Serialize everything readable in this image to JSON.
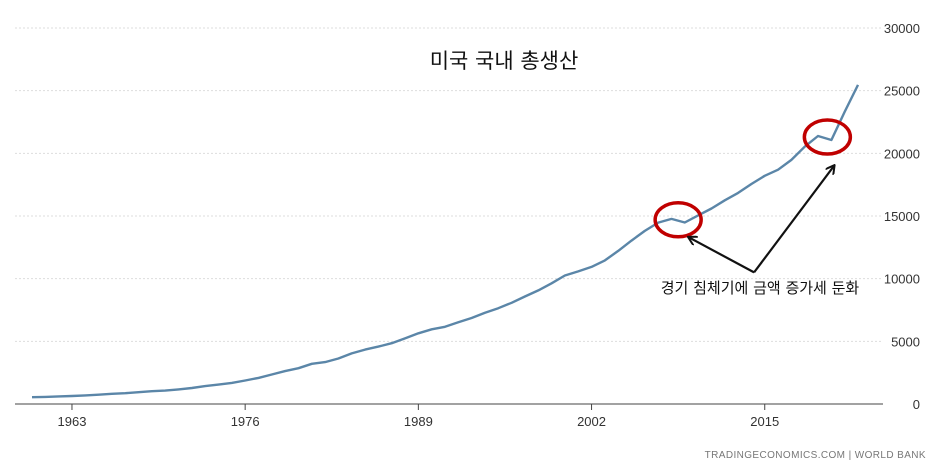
{
  "chart_data": {
    "type": "line",
    "title": "미국 국내 총생산",
    "source": "TRADINGECONOMICS.COM | WORLD BANK",
    "xlim": [
      1960,
      2022
    ],
    "ylim": [
      0,
      30000
    ],
    "x_ticks": [
      "1963",
      "1976",
      "1989",
      "2002",
      "2015"
    ],
    "y_ticks": [
      "0",
      "5000",
      "10000",
      "15000",
      "20000",
      "25000",
      "30000"
    ],
    "grid": true,
    "line_color": "#5b86a8",
    "annotation_color": "#c00000",
    "series": [
      {
        "x": [
          1960,
          1961,
          1962,
          1963,
          1964,
          1965,
          1966,
          1967,
          1968,
          1969,
          1970,
          1971,
          1972,
          1973,
          1974,
          1975,
          1976,
          1977,
          1978,
          1979,
          1980,
          1981,
          1982,
          1983,
          1984,
          1985,
          1986,
          1987,
          1988,
          1989,
          1990,
          1991,
          1992,
          1993,
          1994,
          1995,
          1996,
          1997,
          1998,
          1999,
          2000,
          2001,
          2002,
          2003,
          2004,
          2005,
          2006,
          2007,
          2008,
          2009,
          2010,
          2011,
          2012,
          2013,
          2014,
          2015,
          2016,
          2017,
          2018,
          2019,
          2020,
          2021,
          2022
        ],
        "values": [
          543,
          563,
          605,
          639,
          686,
          744,
          815,
          862,
          943,
          1020,
          1073,
          1165,
          1280,
          1425,
          1545,
          1684,
          1873,
          2082,
          2352,
          2627,
          2857,
          3207,
          3343,
          3634,
          4037,
          4339,
          4580,
          4855,
          5236,
          5642,
          5963,
          6158,
          6520,
          6858,
          7287,
          7640,
          8073,
          8578,
          9063,
          9631,
          10252,
          10582,
          10936,
          11458,
          12214,
          13037,
          13815,
          14475,
          14770,
          14478,
          15049,
          15600,
          16254,
          16843,
          17551,
          18206,
          18695,
          19477,
          20533,
          21381,
          21060,
          23315,
          25463
        ]
      }
    ],
    "annotations": {
      "label": "경기 침체기에 금액 증가세 둔화",
      "circles": [
        {
          "x": 2008.5,
          "y": 14700
        },
        {
          "x": 2019.7,
          "y": 21300
        }
      ],
      "arrow_origin": {
        "x": 2014.2,
        "y": 10500
      },
      "arrow_targets": [
        {
          "x": 2009.3,
          "y": 13300
        },
        {
          "x": 2020.2,
          "y": 19000
        }
      ]
    }
  }
}
